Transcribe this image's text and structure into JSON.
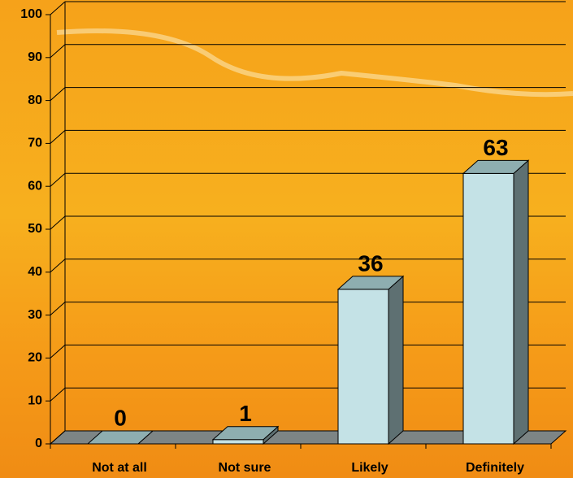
{
  "chart_data": {
    "type": "bar3d",
    "categories": [
      "Not at all",
      "Not sure",
      "Likely",
      "Definitely"
    ],
    "values": [
      0,
      1,
      36,
      63
    ],
    "colors": {
      "front": "#c4e2e6",
      "top": "#8eaeb0",
      "side": "#5e7072"
    },
    "ylim": [
      0,
      100
    ],
    "yticks": [
      0,
      10,
      20,
      30,
      40,
      50,
      60,
      70,
      80,
      90,
      100
    ],
    "grid": true
  }
}
